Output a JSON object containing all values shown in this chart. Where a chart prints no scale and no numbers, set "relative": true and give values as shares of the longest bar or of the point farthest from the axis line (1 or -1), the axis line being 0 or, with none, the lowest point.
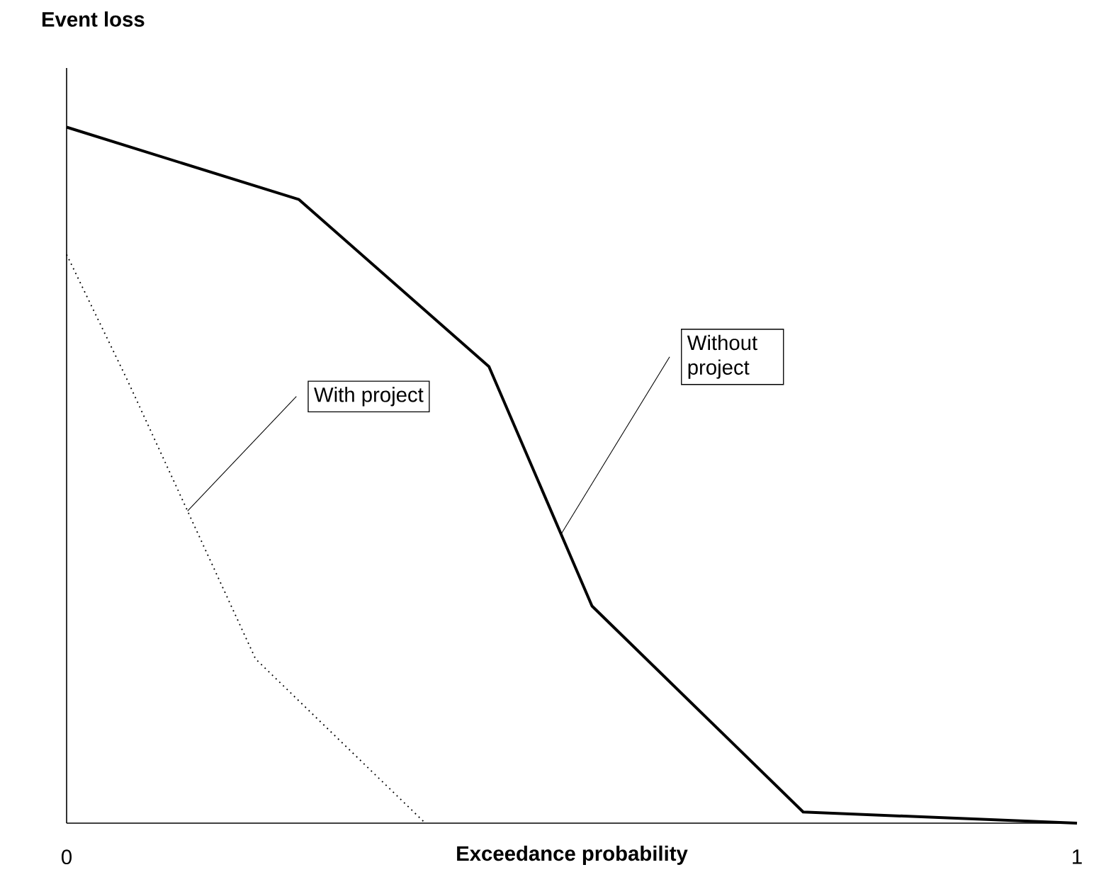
{
  "chart_data": {
    "type": "line",
    "xlabel": "Exceedance probability",
    "ylabel": "Event loss",
    "relative": true,
    "xlim": [
      0,
      1
    ],
    "xticks": [
      0,
      1
    ],
    "series": [
      {
        "name": "Without project",
        "color": "#000000",
        "line_style": "solid",
        "x": [
          0,
          0.23,
          0.418,
          0.52,
          0.729,
          1
        ],
        "values": [
          1,
          0.896,
          0.656,
          0.312,
          0.016,
          0
        ]
      },
      {
        "name": "With project",
        "color": "#000000",
        "line_style": "dotted",
        "x": [
          0,
          0.06,
          0.187,
          0.355
        ],
        "values": [
          0.817,
          0.637,
          0.236,
          0
        ]
      }
    ]
  }
}
